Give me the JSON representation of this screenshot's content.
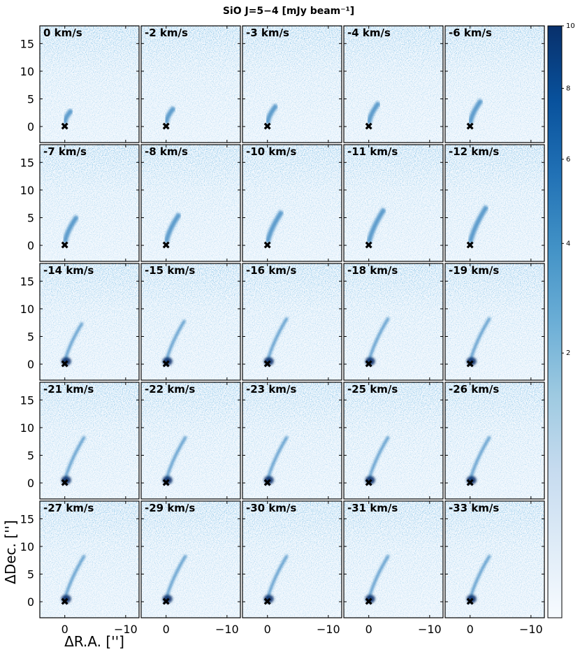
{
  "chart_data": {
    "type": "channel-maps",
    "title": "SiO J=5−4 [mJy beam⁻¹]",
    "xlabel": "ΔR.A. ['']",
    "ylabel": "ΔDec. ['']",
    "categories": [
      "0 km/s",
      "-2 km/s",
      "-3 km/s",
      "-4 km/s",
      "-6 km/s",
      "-7 km/s",
      "-8 km/s",
      "-10 km/s",
      "-11 km/s",
      "-12 km/s",
      "-14 km/s",
      "-15 km/s",
      "-16 km/s",
      "-18 km/s",
      "-19 km/s",
      "-21 km/s",
      "-22 km/s",
      "-23 km/s",
      "-25 km/s",
      "-26 km/s",
      "-27 km/s",
      "-29 km/s",
      "-30 km/s",
      "-31 km/s",
      "-33 km/s"
    ],
    "xlim": [
      4.1,
      -12.2
    ],
    "xticks": [
      0,
      {
        "value": -10,
        "label": "−10"
      }
    ],
    "ylim": [
      -2.9,
      18.2
    ],
    "yticks": [
      0,
      5,
      10,
      15
    ],
    "marker": {
      "x": 0,
      "y": 0
    },
    "colormap": "Blues",
    "stretch": "sqrt",
    "clim": [
      0,
      10
    ],
    "cticks": [
      2,
      4,
      6,
      8,
      10
    ]
  }
}
